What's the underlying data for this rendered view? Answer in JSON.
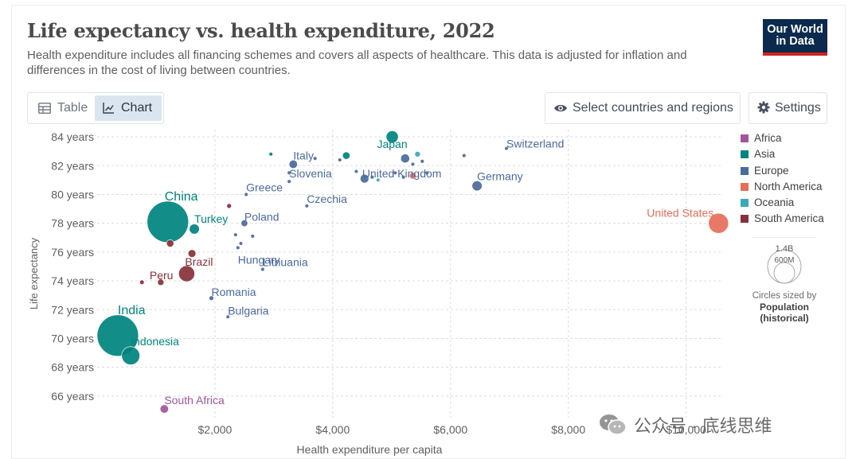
{
  "header": {
    "title": "Life expectancy vs. health expenditure, 2022",
    "subtitle": "Health expenditure includes all financing schemes and covers all aspects of healthcare. This data is adjusted for inflation and differences in the cost of living between countries.",
    "logo_line1": "Our World",
    "logo_line2": "in Data"
  },
  "toolbar": {
    "table_label": "Table",
    "chart_label": "Chart",
    "select_label": "Select countries and regions",
    "settings_label": "Settings"
  },
  "colors": {
    "Africa": "#a2559c",
    "Asia": "#00847e",
    "Europe": "#4c6a9c",
    "North America": "#e56e5a",
    "Oceania": "#38aaba",
    "South America": "#883039"
  },
  "legend": {
    "regions": [
      "Africa",
      "Asia",
      "Europe",
      "North America",
      "Oceania",
      "South America"
    ],
    "size_max_label": "1.4B",
    "size_min_label": "600M",
    "size_note": "Circles sized by",
    "size_variable": "Population (historical)"
  },
  "watermark": {
    "text": "公众号 · 底线思维"
  },
  "chart_data": {
    "type": "scatter",
    "title": "Life expectancy vs. health expenditure, 2022",
    "xlabel": "Health expenditure per capita",
    "ylabel": "Life expectancy",
    "xlim": [
      0,
      10600
    ],
    "ylim": [
      64.5,
      84.5
    ],
    "x_ticks": [
      2000,
      4000,
      6000,
      8000,
      10000
    ],
    "x_tick_labels": [
      "$2,000",
      "$4,000",
      "$6,000",
      "$8,000",
      "$10,000"
    ],
    "y_ticks": [
      66,
      68,
      70,
      72,
      74,
      76,
      78,
      80,
      82,
      84
    ],
    "y_tick_labels": [
      "66 years",
      "68 years",
      "70 years",
      "72 years",
      "74 years",
      "76 years",
      "78 years",
      "80 years",
      "82 years",
      "84 years"
    ],
    "grid": true,
    "points": [
      {
        "label": "China",
        "x": 1200,
        "y": 78.1,
        "pop": 1420,
        "region": "Asia"
      },
      {
        "label": "India",
        "x": 350,
        "y": 70.2,
        "pop": 1420,
        "region": "Asia"
      },
      {
        "label": "Indonesia",
        "x": 570,
        "y": 68.8,
        "pop": 275,
        "region": "Asia"
      },
      {
        "label": "Japan",
        "x": 5010,
        "y": 84.0,
        "pop": 124,
        "region": "Asia"
      },
      {
        "label": "Turkey",
        "x": 1650,
        "y": 77.6,
        "pop": 85,
        "region": "Asia"
      },
      {
        "label": "United States",
        "x": 10550,
        "y": 78.0,
        "pop": 335,
        "region": "North America"
      },
      {
        "label": "Brazil",
        "x": 1520,
        "y": 74.5,
        "pop": 215,
        "region": "South America"
      },
      {
        "label": "Peru",
        "x": 1080,
        "y": 73.9,
        "pop": 34,
        "region": "South America"
      },
      {
        "label": "South Africa",
        "x": 1140,
        "y": 65.1,
        "pop": 60,
        "region": "Africa"
      },
      {
        "label": "Switzerland",
        "x": 6950,
        "y": 83.2,
        "pop": 8.8,
        "region": "Europe"
      },
      {
        "label": "Germany",
        "x": 6450,
        "y": 80.6,
        "pop": 84,
        "region": "Europe"
      },
      {
        "label": "United Kingdom",
        "x": 5230,
        "y": 82.5,
        "pop": 67,
        "region": "Europe"
      },
      {
        "label": "Italy",
        "x": 3330,
        "y": 82.1,
        "pop": 59,
        "region": "Europe"
      },
      {
        "label": "Slovenia",
        "x": 3260,
        "y": 80.9,
        "pop": 2.1,
        "region": "Europe"
      },
      {
        "label": "Czechia",
        "x": 3560,
        "y": 79.2,
        "pop": 10.5,
        "region": "Europe"
      },
      {
        "label": "Greece",
        "x": 2530,
        "y": 80.0,
        "pop": 10.4,
        "region": "Europe"
      },
      {
        "label": "Poland",
        "x": 2500,
        "y": 78.0,
        "pop": 38,
        "region": "Europe"
      },
      {
        "label": "Hungary",
        "x": 2390,
        "y": 76.3,
        "pop": 9.7,
        "region": "Europe"
      },
      {
        "label": "Lithuania",
        "x": 2810,
        "y": 74.8,
        "pop": 2.8,
        "region": "Europe"
      },
      {
        "label": "Romania",
        "x": 1940,
        "y": 72.8,
        "pop": 19,
        "region": "Europe"
      },
      {
        "label": "Bulgaria",
        "x": 2220,
        "y": 71.5,
        "pop": 6.5,
        "region": "Europe"
      },
      {
        "label": "",
        "x": 4230,
        "y": 82.7,
        "pop": 47,
        "region": "Asia"
      },
      {
        "label": "",
        "x": 2950,
        "y": 82.8,
        "pop": 9,
        "region": "Asia"
      },
      {
        "label": "",
        "x": 4540,
        "y": 81.1,
        "pop": 64,
        "region": "Europe"
      },
      {
        "label": "",
        "x": 4120,
        "y": 82.4,
        "pop": 10.4,
        "region": "Europe"
      },
      {
        "label": "",
        "x": 4400,
        "y": 81.6,
        "pop": 5.1,
        "region": "Europe"
      },
      {
        "label": "",
        "x": 5520,
        "y": 82.3,
        "pop": 5.5,
        "region": "Europe"
      },
      {
        "label": "",
        "x": 6230,
        "y": 82.7,
        "pop": 5.4,
        "region": "Europe"
      },
      {
        "label": "",
        "x": 5600,
        "y": 81.5,
        "pop": 10.4,
        "region": "Europe"
      },
      {
        "label": "",
        "x": 3700,
        "y": 82.5,
        "pop": 3,
        "region": "Europe"
      },
      {
        "label": "",
        "x": 5360,
        "y": 82.1,
        "pop": 9,
        "region": "Europe"
      },
      {
        "label": "",
        "x": 2640,
        "y": 77.1,
        "pop": 5.4,
        "region": "Europe"
      },
      {
        "label": "",
        "x": 2350,
        "y": 77.2,
        "pop": 4,
        "region": "Europe"
      },
      {
        "label": "",
        "x": 2440,
        "y": 76.6,
        "pop": 1.3,
        "region": "Europe"
      },
      {
        "label": "",
        "x": 5060,
        "y": 81.5,
        "pop": 4,
        "region": "Europe"
      },
      {
        "label": "",
        "x": 5200,
        "y": 81.2,
        "pop": 11.6,
        "region": "Europe"
      },
      {
        "label": "",
        "x": 3260,
        "y": 81.5,
        "pop": 10,
        "region": "Europe"
      },
      {
        "label": "",
        "x": 4670,
        "y": 81.2,
        "pop": 0.4,
        "region": "Europe"
      },
      {
        "label": "",
        "x": 4770,
        "y": 81.0,
        "pop": 5.2,
        "region": "Oceania"
      },
      {
        "label": "",
        "x": 5440,
        "y": 82.8,
        "pop": 26,
        "region": "Oceania"
      },
      {
        "label": "",
        "x": 5360,
        "y": 81.3,
        "pop": 38,
        "region": "North America"
      },
      {
        "label": "",
        "x": 2240,
        "y": 79.2,
        "pop": 19,
        "region": "South America"
      },
      {
        "label": "",
        "x": 1610,
        "y": 75.9,
        "pop": 51,
        "region": "South America"
      },
      {
        "label": "",
        "x": 1240,
        "y": 76.6,
        "pop": 45,
        "region": "South America"
      },
      {
        "label": "",
        "x": 760,
        "y": 73.9,
        "pop": 18,
        "region": "South America"
      }
    ]
  }
}
